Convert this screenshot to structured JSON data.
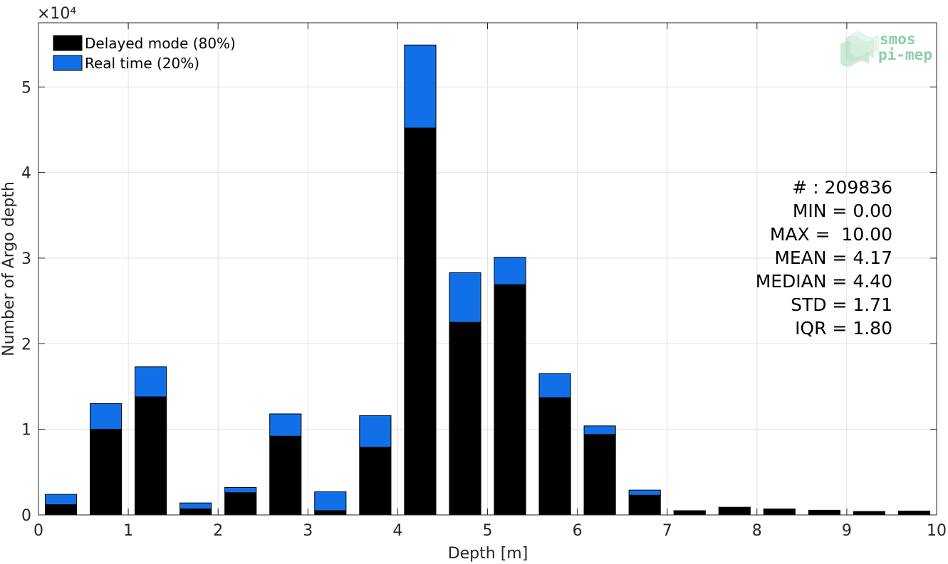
{
  "chart_data": {
    "type": "bar",
    "stacked": true,
    "xlabel": "Depth [m]",
    "ylabel": "Number of Argo depth",
    "y_multiplier": "×10⁴",
    "xlim": [
      0,
      10
    ],
    "ylim": [
      0,
      55000
    ],
    "xticks": [
      0,
      1,
      2,
      3,
      4,
      5,
      6,
      7,
      8,
      9,
      10
    ],
    "yticks": [
      0,
      10000,
      20000,
      30000,
      40000,
      50000
    ],
    "ytick_labels": [
      "0",
      "1",
      "2",
      "3",
      "4",
      "5"
    ],
    "grid": true,
    "legend_position": "top-left",
    "bin_centers": [
      0.25,
      0.75,
      1.25,
      1.75,
      2.25,
      2.75,
      3.25,
      3.75,
      4.25,
      4.75,
      5.25,
      5.75,
      6.25,
      6.75,
      7.25,
      7.75,
      8.25,
      8.75,
      9.25,
      9.75
    ],
    "bar_width": 0.35,
    "series": [
      {
        "name": "Delayed mode (80%)",
        "color": "#000000",
        "values": [
          1200,
          10000,
          13800,
          700,
          2600,
          9200,
          500,
          7900,
          45200,
          22500,
          26900,
          13700,
          9400,
          2300,
          400,
          900,
          700,
          550,
          400,
          450
        ]
      },
      {
        "name": "Real time (20%)",
        "color": "#1170e8",
        "values": [
          1200,
          3000,
          3500,
          700,
          600,
          2600,
          2200,
          3700,
          9700,
          5800,
          3200,
          2800,
          1000,
          600,
          100,
          0,
          0,
          0,
          0,
          0
        ]
      }
    ],
    "stats": [
      "# : 209836",
      "MIN = 0.00",
      "MAX =  10.00",
      "MEAN = 4.17",
      "MEDIAN = 4.40",
      "STD = 1.71",
      "IQR = 1.80"
    ]
  },
  "logo": {
    "line1": "smos",
    "line2": "pi-mep",
    "color": "#8ccfa6"
  }
}
